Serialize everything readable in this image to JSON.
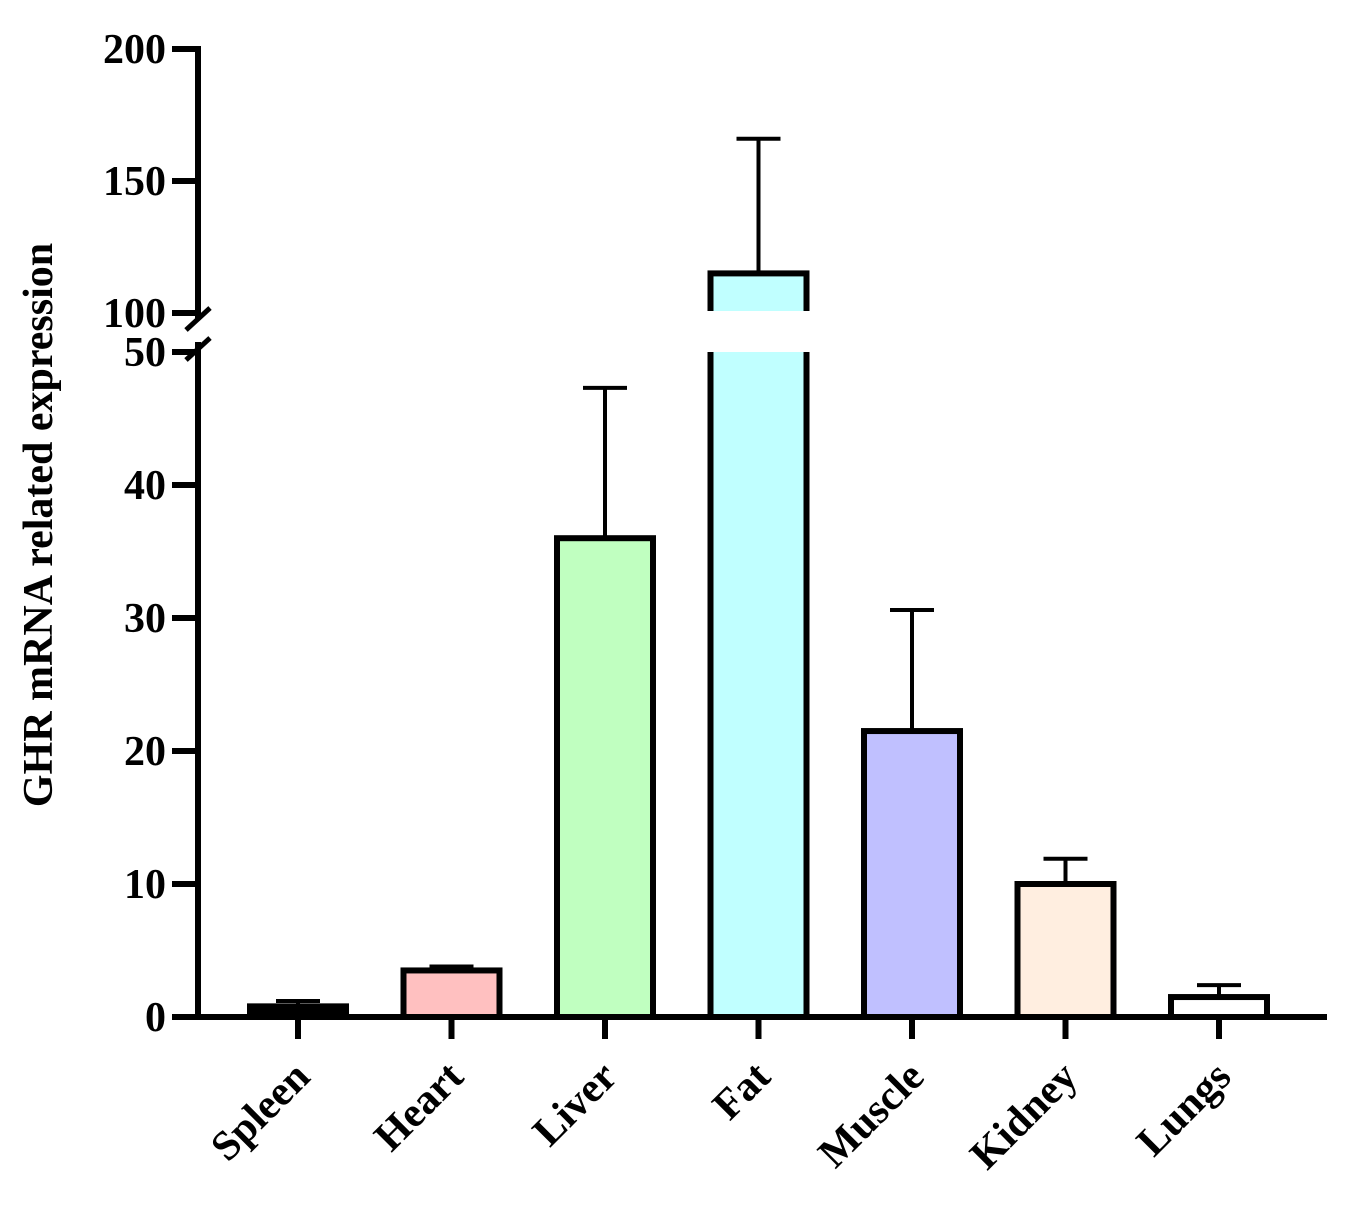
{
  "chart_data": {
    "type": "bar",
    "title": "",
    "xlabel": "",
    "ylabel": "GHR mRNA related expression",
    "categories": [
      "Spleen",
      "Heart",
      "Liver",
      "Fat",
      "Muscle",
      "Kidney",
      "Lungs"
    ],
    "values": [
      0.8,
      3.5,
      36,
      115,
      21.5,
      10,
      1.5
    ],
    "error_upper": [
      1.2,
      3.8,
      47.3,
      166,
      30.6,
      11.9,
      2.4
    ],
    "colors": [
      "#000000",
      "#ffc0c0",
      "#c0ffc0",
      "#c0ffff",
      "#c0c0ff",
      "#ffeee0",
      "#ffffff"
    ],
    "ylim": [
      0,
      200
    ],
    "axis_break": {
      "lower_max": 50,
      "upper_min": 100
    },
    "yticks_lower": [
      0,
      10,
      20,
      30,
      40,
      50
    ],
    "yticks_upper": [
      100,
      150,
      200
    ],
    "ytick_labels_lower": [
      "0",
      "10",
      "20",
      "30",
      "40",
      "50"
    ],
    "ytick_labels_upper": [
      "100",
      "150",
      "200"
    ],
    "grid": false,
    "legend": "none"
  }
}
